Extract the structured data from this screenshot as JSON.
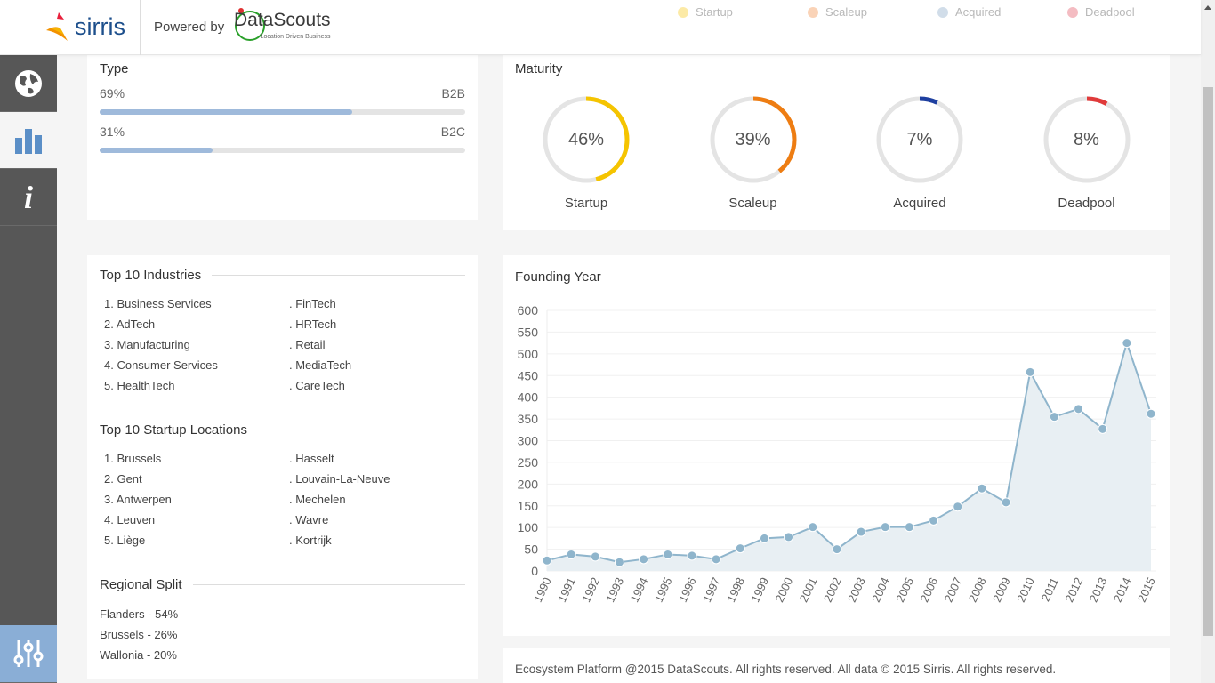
{
  "header": {
    "brand": "sirris",
    "powered_by": "Powered by",
    "partner": "DataScouts",
    "partner_tagline": "Location Driven Business"
  },
  "legend": [
    {
      "label": "Startup",
      "color": "#f5c400"
    },
    {
      "label": "Scaleup",
      "color": "#f08030"
    },
    {
      "label": "Acquired",
      "color": "#7a9ec0"
    },
    {
      "label": "Deadpool",
      "color": "#e04050"
    }
  ],
  "sidebar": {
    "items": [
      {
        "name": "globe-icon"
      },
      {
        "name": "bar-chart-icon",
        "active": true
      },
      {
        "name": "info-icon"
      }
    ],
    "bottom": "sliders-icon"
  },
  "type": {
    "title": "Type",
    "rows": [
      {
        "pct": "69%",
        "label": "B2B",
        "value": 69
      },
      {
        "pct": "31%",
        "label": "B2C",
        "value": 31
      }
    ]
  },
  "maturity": {
    "title": "Maturity",
    "items": [
      {
        "pct": "46%",
        "label": "Startup",
        "value": 46,
        "color": "#f5c400"
      },
      {
        "pct": "39%",
        "label": "Scaleup",
        "value": 39,
        "color": "#ee7d12"
      },
      {
        "pct": "7%",
        "label": "Acquired",
        "value": 7,
        "color": "#1e3fa0"
      },
      {
        "pct": "8%",
        "label": "Deadpool",
        "value": 8,
        "color": "#e03a3a"
      }
    ]
  },
  "industries": {
    "title": "Top 10 Industries",
    "left": [
      "1. Business Services",
      "2. AdTech",
      "3. Manufacturing",
      "4. Consumer Services",
      "5. HealthTech"
    ],
    "right": [
      ". FinTech",
      ". HRTech",
      ". Retail",
      ". MediaTech",
      ". CareTech"
    ]
  },
  "locations": {
    "title": "Top 10 Startup Locations",
    "left": [
      "1. Brussels",
      "2. Gent",
      "3. Antwerpen",
      "4. Leuven",
      "5. Liège"
    ],
    "right": [
      ". Hasselt",
      ". Louvain-La-Neuve",
      ". Mechelen",
      ". Wavre",
      ". Kortrijk"
    ]
  },
  "regional": {
    "title": "Regional Split",
    "items": [
      "Flanders - 54%",
      "Brussels - 26%",
      "Wallonia - 20%"
    ]
  },
  "founding": {
    "title": "Founding Year"
  },
  "chart_data": {
    "type": "area",
    "title": "Founding Year",
    "x": [
      1990,
      1991,
      1992,
      1993,
      1994,
      1995,
      1996,
      1997,
      1998,
      1999,
      2000,
      2001,
      2002,
      2003,
      2004,
      2005,
      2006,
      2007,
      2008,
      2009,
      2010,
      2011,
      2012,
      2013,
      2014,
      2015
    ],
    "values": [
      24,
      38,
      33,
      20,
      27,
      38,
      35,
      27,
      52,
      75,
      78,
      101,
      50,
      90,
      101,
      101,
      116,
      148,
      190,
      158,
      458,
      355,
      373,
      327,
      525,
      362
    ],
    "ylim": [
      0,
      600
    ],
    "yticks": [
      0,
      50,
      100,
      150,
      200,
      250,
      300,
      350,
      400,
      450,
      500,
      550,
      600
    ],
    "grid": true,
    "color": "#8fb5cc"
  },
  "footer": {
    "text": "Ecosystem Platform @2015 DataScouts. All rights reserved. All data © 2015 Sirris. All rights reserved."
  }
}
